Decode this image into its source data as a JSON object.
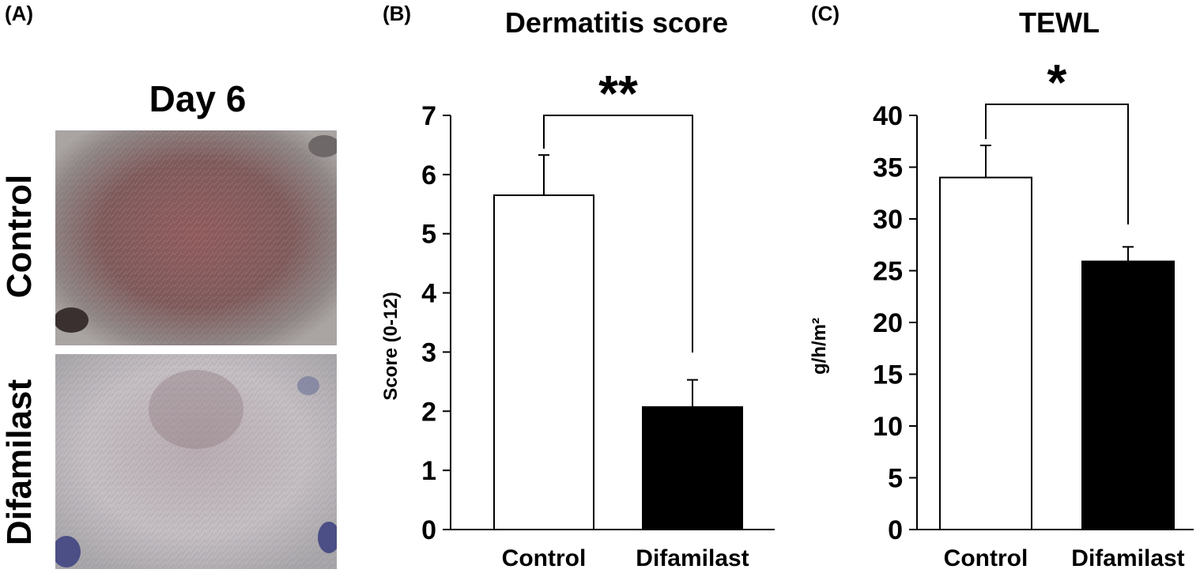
{
  "panel_a": {
    "label": "(A)",
    "day_label": "Day 6",
    "row_labels": [
      "Control",
      "Difamilast"
    ]
  },
  "chart_data": [
    {
      "panel_label": "(B)",
      "type": "bar",
      "title": "Dermatitis score",
      "xlabel": "",
      "ylabel": "Score (0-12)",
      "categories": [
        "Control",
        "Difamilast"
      ],
      "values": [
        5.65,
        2.07
      ],
      "errors": [
        0.68,
        0.46
      ],
      "bar_colors": [
        "#ffffff",
        "#000000"
      ],
      "ylim": [
        0,
        7
      ],
      "yticks": [
        0,
        1,
        2,
        3,
        4,
        5,
        6,
        7
      ],
      "significance": "**",
      "grid": false
    },
    {
      "panel_label": "(C)",
      "type": "bar",
      "title": "TEWL",
      "xlabel": "",
      "ylabel": "g/h/m²",
      "categories": [
        "Control",
        "Difamilast"
      ],
      "values": [
        34.0,
        25.9
      ],
      "errors": [
        3.1,
        1.4
      ],
      "bar_colors": [
        "#ffffff",
        "#000000"
      ],
      "ylim": [
        0,
        40
      ],
      "yticks": [
        0,
        5,
        10,
        15,
        20,
        25,
        30,
        35,
        40
      ],
      "significance": "*",
      "grid": false
    }
  ]
}
